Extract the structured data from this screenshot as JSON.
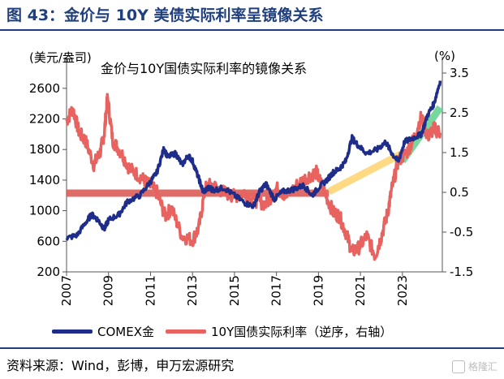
{
  "figure_title": "图 43：金价与 10Y 美债实际利率呈镜像关系",
  "source_note": "资料来源：Wind，彭博，申万宏源研究",
  "watermark": "格隆汇",
  "legend": {
    "gold_label": "COMEX金",
    "rate_label": "10Y国债实际利率（逆序，右轴）"
  },
  "colors": {
    "gold": "#1f2d8a",
    "rate": "#e8635f",
    "overlay_red": "#d9534f",
    "overlay_yellow": "#ffd36e",
    "overlay_green": "#5fd38a",
    "brand": "#1f3f7f",
    "axis": "#555555"
  },
  "chart_data": {
    "type": "line",
    "title": "金价与10Y国债实际利率的镜像关系",
    "left_axis_unit": "(美元/盎司)",
    "right_axis_unit": "(%)",
    "ylim_left": [
      200,
      2800
    ],
    "yticks_left": [
      "2600",
      "2200",
      "1800",
      "1400",
      "1000",
      "600",
      "200"
    ],
    "ylim_right": [
      3.5,
      -1.5
    ],
    "right_axis_inverted": true,
    "yticks_right": [
      "3.5",
      "2.5",
      "1.5",
      "0.5",
      "-0.5",
      "-1.5"
    ],
    "xlim": [
      2007,
      2024.9
    ],
    "xticks": [
      "2007",
      "2009",
      "2011",
      "2013",
      "2015",
      "2017",
      "2019",
      "2021",
      "2023"
    ],
    "series": [
      {
        "name": "COMEX金",
        "axis": "left",
        "x": [
          2007.0,
          2007.5,
          2008.0,
          2008.2,
          2008.5,
          2008.8,
          2009.0,
          2009.5,
          2009.9,
          2010.5,
          2011.0,
          2011.3,
          2011.65,
          2011.8,
          2012.2,
          2012.5,
          2012.8,
          2013.0,
          2013.3,
          2013.5,
          2013.8,
          2014.0,
          2014.5,
          2015.0,
          2015.5,
          2015.9,
          2016.2,
          2016.5,
          2016.9,
          2017.3,
          2017.8,
          2018.3,
          2018.7,
          2019.0,
          2019.4,
          2019.7,
          2020.0,
          2020.3,
          2020.6,
          2020.9,
          2021.3,
          2021.8,
          2022.2,
          2022.5,
          2022.8,
          2023.1,
          2023.5,
          2023.9,
          2024.2,
          2024.5,
          2024.8
        ],
        "y": [
          640,
          680,
          880,
          950,
          880,
          760,
          880,
          950,
          1120,
          1200,
          1380,
          1500,
          1820,
          1700,
          1750,
          1600,
          1720,
          1650,
          1420,
          1250,
          1300,
          1270,
          1300,
          1200,
          1100,
          1060,
          1250,
          1350,
          1150,
          1250,
          1280,
          1330,
          1200,
          1300,
          1400,
          1500,
          1550,
          1650,
          1950,
          1850,
          1750,
          1800,
          1900,
          1750,
          1640,
          1900,
          1950,
          2000,
          2250,
          2400,
          2700
        ]
      },
      {
        "name": "10Y国债实际利率（逆序，右轴）",
        "axis": "right",
        "x": [
          2007.0,
          2007.3,
          2007.6,
          2007.9,
          2008.3,
          2008.6,
          2008.8,
          2008.95,
          2009.2,
          2009.6,
          2010.0,
          2010.5,
          2010.9,
          2011.3,
          2011.7,
          2012.0,
          2012.5,
          2013.0,
          2013.3,
          2013.6,
          2013.9,
          2014.5,
          2015.0,
          2015.5,
          2016.0,
          2016.5,
          2017.0,
          2017.5,
          2018.0,
          2018.5,
          2018.9,
          2019.3,
          2019.7,
          2020.0,
          2020.3,
          2020.6,
          2020.9,
          2021.3,
          2021.7,
          2022.0,
          2022.3,
          2022.5,
          2022.8,
          2023.2,
          2023.5,
          2023.9,
          2024.2,
          2024.5,
          2024.8
        ],
        "y": [
          2.3,
          2.6,
          2.0,
          1.8,
          1.2,
          1.5,
          2.0,
          2.9,
          1.8,
          1.5,
          1.1,
          0.9,
          0.7,
          0.5,
          -0.1,
          0.1,
          -0.6,
          -0.7,
          -0.4,
          0.6,
          0.7,
          0.5,
          0.4,
          0.5,
          0.3,
          0.2,
          0.6,
          0.4,
          0.7,
          0.9,
          1.0,
          0.5,
          0.0,
          -0.1,
          -0.5,
          -1.0,
          -0.9,
          -0.6,
          -1.1,
          -0.6,
          0.0,
          0.6,
          1.3,
          1.5,
          1.8,
          2.4,
          1.9,
          2.1,
          2.0
        ]
      }
    ],
    "overlays": [
      {
        "color_key": "overlay_red",
        "x": [
          2007.0,
          2019.5
        ],
        "y": [
          1230,
          1230
        ]
      },
      {
        "color_key": "overlay_yellow",
        "x": [
          2019.5,
          2023.0
        ],
        "y": [
          1250,
          1750
        ]
      },
      {
        "color_key": "overlay_green",
        "x": [
          2023.0,
          2024.8
        ],
        "y": [
          1650,
          2350
        ]
      }
    ]
  }
}
